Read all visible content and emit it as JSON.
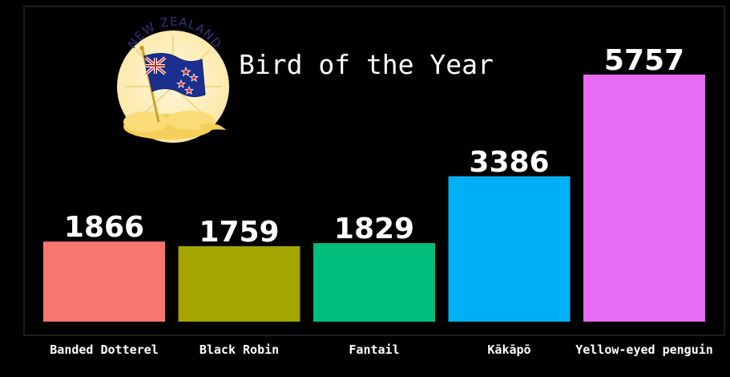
{
  "chart_data": {
    "type": "bar",
    "title": "Bird of the Year",
    "categories": [
      "Banded Dotterel",
      "Black Robin",
      "Fantail",
      "Kākāpō",
      "Yellow-eyed penguin"
    ],
    "values": [
      1866,
      1759,
      1829,
      3386,
      5757
    ],
    "colors": [
      "#F8766D",
      "#A3A500",
      "#00BF7D",
      "#00B0F6",
      "#E76BF3"
    ],
    "xlabel": "",
    "ylabel": "",
    "ylim": [
      0,
      5757
    ],
    "grid": false,
    "legend": "none",
    "background": "#000000"
  },
  "badge": {
    "text": "NEW ZEALAND",
    "icon": "new-zealand-flag-badge-icon"
  }
}
